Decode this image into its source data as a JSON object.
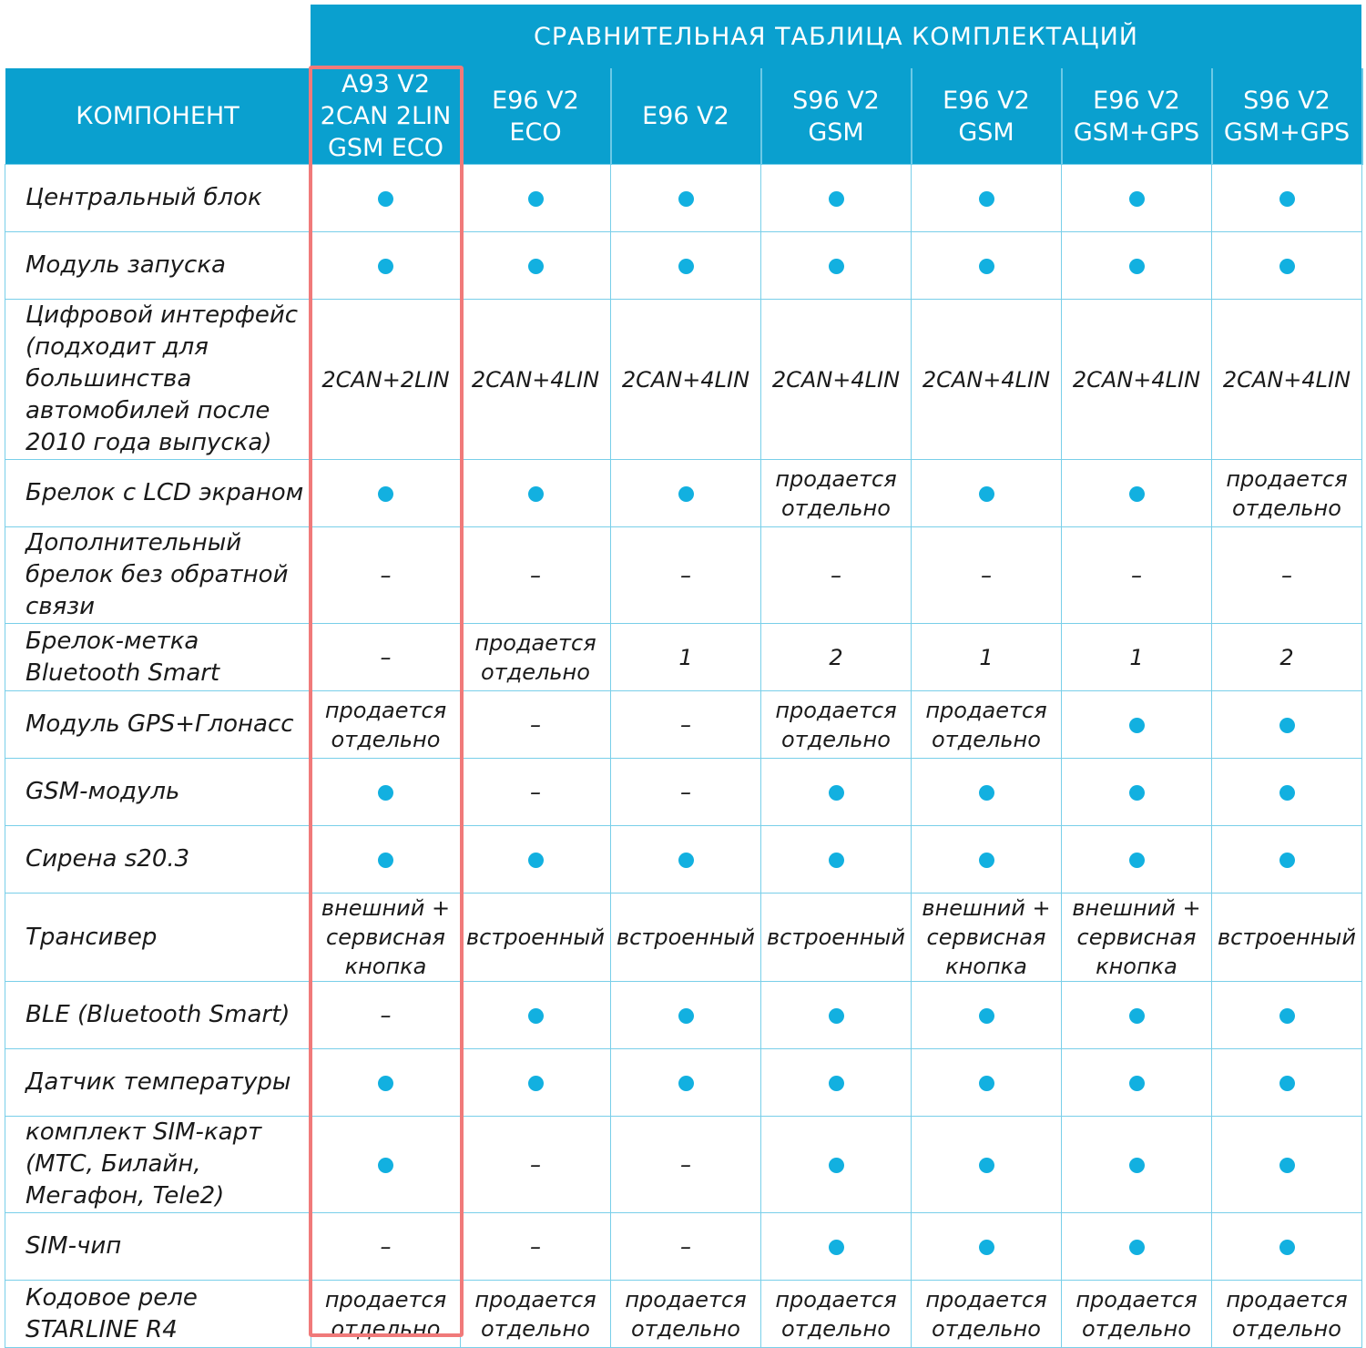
{
  "title": "СРАВНИТЕЛЬНАЯ ТАБЛИЦА КОМПЛЕКТАЦИЙ",
  "component_header": "КОМПОНЕНТ",
  "columns": [
    [
      "A93 V2",
      "2CAN 2LIN",
      "GSM ECO"
    ],
    [
      "E96 V2",
      "ECO"
    ],
    [
      "E96 V2"
    ],
    [
      "S96 V2",
      "GSM"
    ],
    [
      "E96 V2",
      "GSM"
    ],
    [
      "E96 V2",
      "GSM+GPS"
    ],
    [
      "S96 V2",
      "GSM+GPS"
    ]
  ],
  "highlighted_column": 0,
  "colors": {
    "header_bg": "#0aa0cf",
    "dot": "#12b0e0",
    "highlight": "#f07a7a"
  },
  "rows": [
    {
      "label": "Центральный блок",
      "values": [
        "dot",
        "dot",
        "dot",
        "dot",
        "dot",
        "dot",
        "dot"
      ]
    },
    {
      "label": "Модуль запуска",
      "values": [
        "dot",
        "dot",
        "dot",
        "dot",
        "dot",
        "dot",
        "dot"
      ]
    },
    {
      "label": "Цифровой интерфейс (подходит для большинства автомобилей после 2010 года выпуска)",
      "values": [
        "2CAN+2LIN",
        "2CAN+4LIN",
        "2CAN+4LIN",
        "2CAN+4LIN",
        "2CAN+4LIN",
        "2CAN+4LIN",
        "2CAN+4LIN"
      ]
    },
    {
      "label": "Брелок с LCD экраном",
      "values": [
        "dot",
        "dot",
        "dot",
        "продается отдельно",
        "dot",
        "dot",
        "продается отдельно"
      ]
    },
    {
      "label": "Дополнительный брелок без обратной связи",
      "values": [
        "–",
        "–",
        "–",
        "–",
        "–",
        "–",
        "–"
      ]
    },
    {
      "label": "Брелок-метка Bluetooth Smart",
      "values": [
        "–",
        "продается отдельно",
        "1",
        "2",
        "1",
        "1",
        "2"
      ]
    },
    {
      "label": "Модуль GPS+Глонасс",
      "values": [
        "продается отдельно",
        "–",
        "–",
        "продается отдельно",
        "продается отдельно",
        "dot",
        "dot"
      ]
    },
    {
      "label": "GSM-модуль",
      "values": [
        "dot",
        "–",
        "–",
        "dot",
        "dot",
        "dot",
        "dot"
      ]
    },
    {
      "label": "Сирена s20.3",
      "values": [
        "dot",
        "dot",
        "dot",
        "dot",
        "dot",
        "dot",
        "dot"
      ]
    },
    {
      "label": "Трансивер",
      "values": [
        "внешний + сервисная кнопка",
        "встроенный",
        "встроенный",
        "встроенный",
        "внешний + сервисная кнопка",
        "внешний + сервисная кнопка",
        "встроенный"
      ]
    },
    {
      "label": "BLE (Bluetooth Smart)",
      "values": [
        "–",
        "dot",
        "dot",
        "dot",
        "dot",
        "dot",
        "dot"
      ]
    },
    {
      "label": "Датчик температуры",
      "values": [
        "dot",
        "dot",
        "dot",
        "dot",
        "dot",
        "dot",
        "dot"
      ]
    },
    {
      "label": "комплект SIM-карт (МТС, Билайн, Мегафон, Tele2)",
      "values": [
        "dot",
        "–",
        "–",
        "dot",
        "dot",
        "dot",
        "dot"
      ]
    },
    {
      "label": "SIM-чип",
      "values": [
        "–",
        "–",
        "–",
        "dot",
        "dot",
        "dot",
        "dot"
      ]
    },
    {
      "label": "Кодовое реле STARLINE R4",
      "values": [
        "продается отдельно",
        "продается отдельно",
        "продается отдельно",
        "продается отдельно",
        "продается отдельно",
        "продается отдельно",
        "продается отдельно"
      ]
    }
  ]
}
